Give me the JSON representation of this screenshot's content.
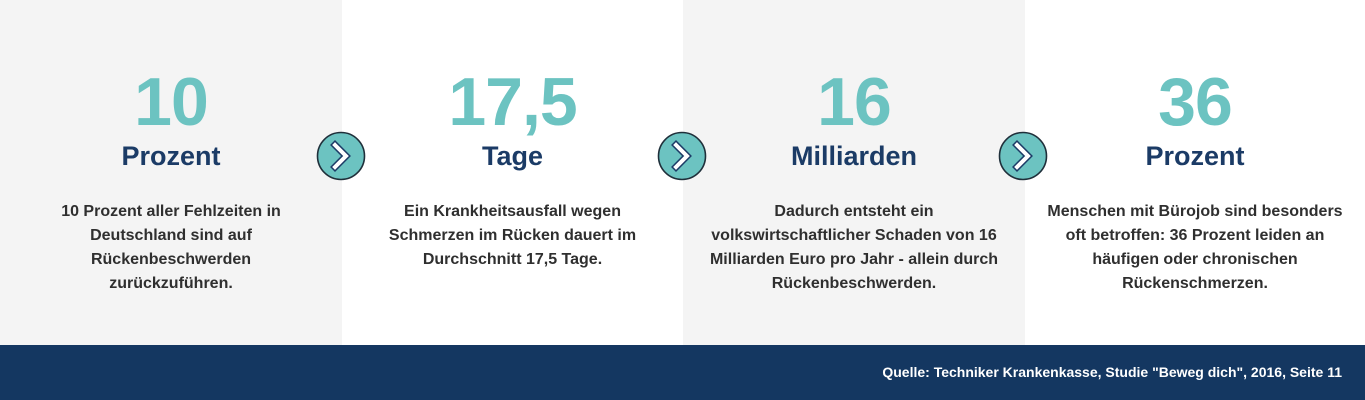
{
  "colors": {
    "accent": "#6cc3c1",
    "heading": "#1b3b66",
    "footer": "#143761",
    "panel_gray": "#f4f4f4"
  },
  "stats": [
    {
      "number": "10",
      "unit": "Prozent",
      "description": "10 Prozent aller Fehlzeiten in Deutschland sind auf Rückenbeschwerden zurückzuführen."
    },
    {
      "number": "17,5",
      "unit": "Tage",
      "description": "Ein Krankheitsausfall wegen Schmerzen im Rücken dauert im Durchschnitt 17,5 Tage."
    },
    {
      "number": "16",
      "unit": "Milliarden",
      "description": "Dadurch entsteht ein volkswirtschaftlicher Schaden von 16 Milliarden Euro pro Jahr - allein durch Rückenbeschwerden."
    },
    {
      "number": "36",
      "unit": "Prozent",
      "description": "Menschen mit Bürojob sind besonders oft betroffen: 36 Prozent leiden an häufigen oder chronischen Rückenschmerzen."
    }
  ],
  "arrows": [
    {
      "icon": "chevron-right-icon"
    },
    {
      "icon": "chevron-right-icon"
    },
    {
      "icon": "chevron-right-icon"
    }
  ],
  "footer": {
    "source": "Quelle: Techniker Krankenkasse, Studie \"Beweg dich\", 2016, Seite 11"
  }
}
